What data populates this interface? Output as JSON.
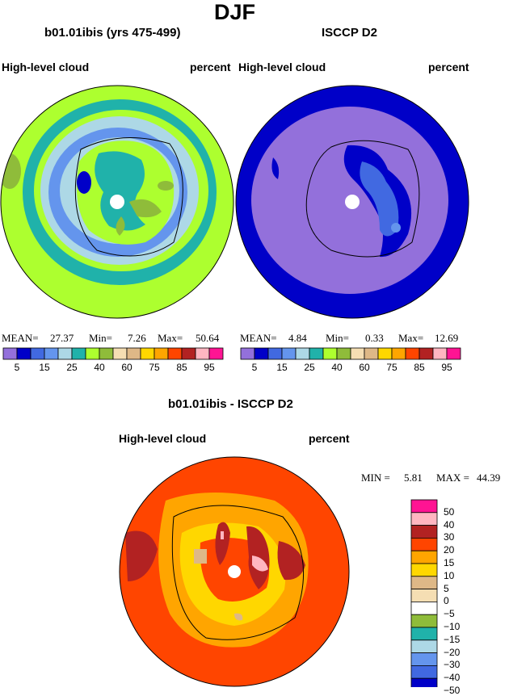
{
  "title": "DJF",
  "left_panel": {
    "model_title": "b01.01ibis (yrs 475-499)",
    "variable": "High-level cloud",
    "units": "percent",
    "stats": {
      "mean_label": "MEAN=",
      "mean": "27.37",
      "min_label": "Min=",
      "min": "7.26",
      "max_label": "Max=",
      "max": "50.64"
    }
  },
  "right_panel": {
    "model_title": "ISCCP D2",
    "variable": "High-level cloud",
    "units": "percent",
    "stats": {
      "mean_label": "MEAN=",
      "mean": "4.84",
      "min_label": "Min=",
      "min": "0.33",
      "max_label": "Max=",
      "max": "12.69"
    }
  },
  "top_colorbar": {
    "colors": [
      "#9370db",
      "#0000c8",
      "#4169e1",
      "#6495ed",
      "#add8e6",
      "#20b2aa",
      "#adff2f",
      "#8fbc3a",
      "#f5deb3",
      "#deb887",
      "#ffd700",
      "#ffa500",
      "#ff4500",
      "#b22222",
      "#ffb6c1",
      "#ff1493"
    ],
    "tick_labels": [
      "5",
      "15",
      "25",
      "40",
      "60",
      "75",
      "85",
      "95"
    ]
  },
  "diff_panel": {
    "model_title": "b01.01ibis - ISCCP D2",
    "variable": "High-level cloud",
    "units": "percent",
    "stats": {
      "min_label": "MIN =",
      "min": "5.81",
      "max_label": "MAX =",
      "max": "44.39"
    }
  },
  "diff_colorbar": {
    "colors_top_to_bottom": [
      "#ff1493",
      "#ffb6c1",
      "#b22222",
      "#ff4500",
      "#ffa500",
      "#ffd700",
      "#deb887",
      "#f5deb3",
      "#ffffff",
      "#8fbc3a",
      "#20b2aa",
      "#add8e6",
      "#6495ed",
      "#4169e1",
      "#0000c8",
      "#9370db"
    ],
    "tick_labels": [
      "50",
      "40",
      "30",
      "20",
      "15",
      "10",
      "5",
      "0",
      "−5",
      "−10",
      "−15",
      "−20",
      "−30",
      "−40",
      "−50"
    ]
  }
}
